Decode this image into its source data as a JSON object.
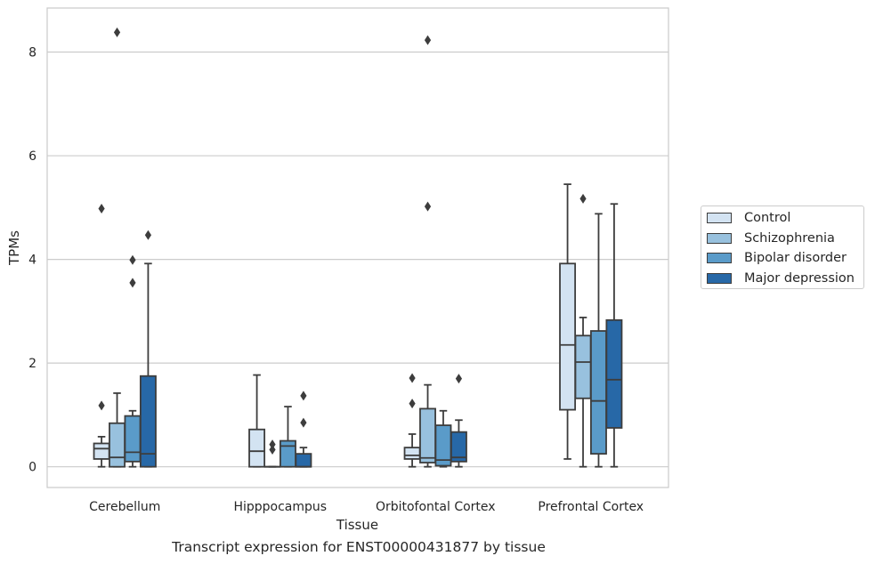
{
  "chart_data": {
    "type": "box",
    "xlabel": "Tissue",
    "ylabel": "TPMs",
    "ylim": [
      -0.4,
      8.85
    ],
    "yticks": [
      0,
      2,
      4,
      6,
      8
    ],
    "grid": "horizontal",
    "legend_position": "right",
    "categories": [
      "Cerebellum",
      "Hipppocampus",
      "Orbitofontal Cortex",
      "Prefrontal Cortex"
    ],
    "series": [
      {
        "name": "Control",
        "color": "#d3e3f2",
        "boxes": [
          {
            "whisker_low": 0.0,
            "q1": 0.15,
            "median": 0.35,
            "q3": 0.45,
            "whisker_high": 0.58,
            "outliers": [
              1.18,
              4.98
            ]
          },
          {
            "whisker_low": 0.0,
            "q1": 0.0,
            "median": 0.3,
            "q3": 0.72,
            "whisker_high": 1.77,
            "outliers": []
          },
          {
            "whisker_low": 0.0,
            "q1": 0.15,
            "median": 0.22,
            "q3": 0.37,
            "whisker_high": 0.63,
            "outliers": [
              1.22,
              1.71
            ]
          },
          {
            "whisker_low": 0.15,
            "q1": 1.1,
            "median": 2.35,
            "q3": 3.92,
            "whisker_high": 5.45,
            "outliers": []
          }
        ]
      },
      {
        "name": "Schizophrenia",
        "color": "#98c1de",
        "boxes": [
          {
            "whisker_low": 0.0,
            "q1": 0.0,
            "median": 0.18,
            "q3": 0.84,
            "whisker_high": 1.42,
            "outliers": [
              8.38
            ]
          },
          {
            "whisker_low": 0.0,
            "q1": 0.0,
            "median": 0.0,
            "q3": 0.0,
            "whisker_high": 0.0,
            "outliers": [
              0.33,
              0.43
            ]
          },
          {
            "whisker_low": 0.0,
            "q1": 0.08,
            "median": 0.17,
            "q3": 1.12,
            "whisker_high": 1.58,
            "outliers": [
              5.02,
              8.23
            ]
          },
          {
            "whisker_low": 0.0,
            "q1": 1.32,
            "median": 2.02,
            "q3": 2.53,
            "whisker_high": 2.88,
            "outliers": [
              5.17
            ]
          }
        ]
      },
      {
        "name": "Bipolar disorder",
        "color": "#5a9bc9",
        "boxes": [
          {
            "whisker_low": 0.0,
            "q1": 0.1,
            "median": 0.28,
            "q3": 0.98,
            "whisker_high": 1.08,
            "outliers": [
              3.55,
              3.99
            ]
          },
          {
            "whisker_low": 0.0,
            "q1": 0.0,
            "median": 0.4,
            "q3": 0.5,
            "whisker_high": 1.16,
            "outliers": []
          },
          {
            "whisker_low": 0.0,
            "q1": 0.02,
            "median": 0.13,
            "q3": 0.8,
            "whisker_high": 1.08,
            "outliers": []
          },
          {
            "whisker_low": 0.0,
            "q1": 0.25,
            "median": 1.27,
            "q3": 2.62,
            "whisker_high": 4.88,
            "outliers": []
          }
        ]
      },
      {
        "name": "Major depression",
        "color": "#2768a7",
        "boxes": [
          {
            "whisker_low": 0.0,
            "q1": 0.0,
            "median": 0.25,
            "q3": 1.75,
            "whisker_high": 3.92,
            "outliers": [
              4.47
            ]
          },
          {
            "whisker_low": 0.0,
            "q1": 0.0,
            "median": 0.0,
            "q3": 0.25,
            "whisker_high": 0.37,
            "outliers": [
              0.85,
              1.37
            ]
          },
          {
            "whisker_low": 0.0,
            "q1": 0.1,
            "median": 0.18,
            "q3": 0.67,
            "whisker_high": 0.9,
            "outliers": [
              1.7
            ]
          },
          {
            "whisker_low": 0.0,
            "q1": 0.75,
            "median": 1.68,
            "q3": 2.83,
            "whisker_high": 5.07,
            "outliers": []
          }
        ]
      }
    ]
  },
  "caption": "Transcript expression for ENST00000431877 by tissue"
}
